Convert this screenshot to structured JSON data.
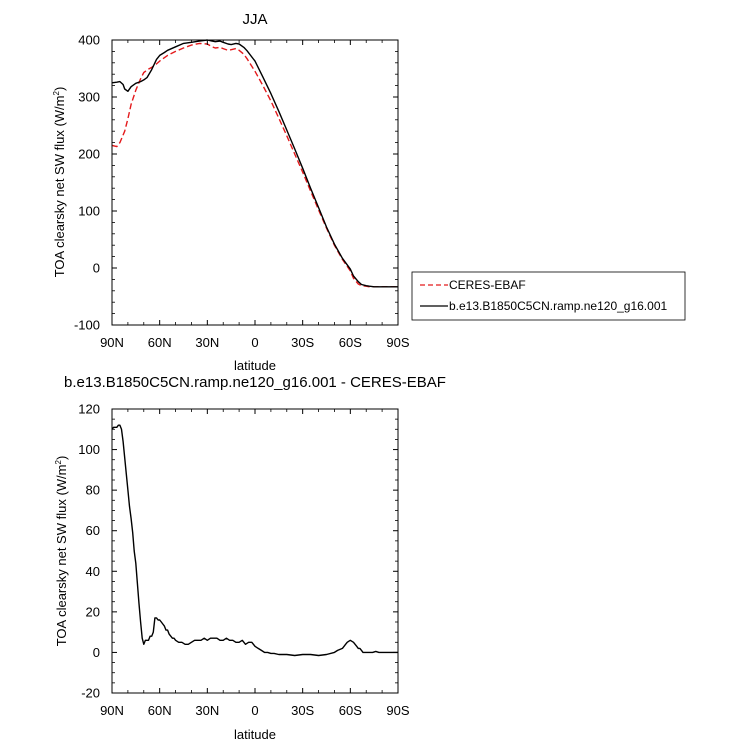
{
  "chart_data": [
    {
      "type": "line",
      "title": "JJA",
      "xlabel": "latitude",
      "ylabel": "TOA clearsky net SW flux (W/m",
      "ylabel_sup": "2",
      "ylabel_close": ")",
      "xlim": [
        90,
        -90
      ],
      "ylim": [
        -100,
        400
      ],
      "x_ticks": [
        90,
        60,
        30,
        0,
        -30,
        -60,
        -90
      ],
      "x_tick_labels": [
        "90N",
        "60N",
        "30N",
        "0",
        "30S",
        "60S",
        "90S"
      ],
      "y_ticks": [
        -100,
        0,
        100,
        200,
        300,
        400
      ],
      "y_tick_labels": [
        "-100",
        "0",
        "100",
        "200",
        "300",
        "400"
      ],
      "legend": "right",
      "series": [
        {
          "name": "CERES-EBAF",
          "color": "#e41a1c",
          "dash": true,
          "x": [
            90,
            87,
            85,
            82,
            80,
            78,
            75,
            72,
            70,
            67,
            65,
            62,
            60,
            57,
            55,
            50,
            45,
            40,
            35,
            30,
            27,
            25,
            22,
            20,
            17,
            15,
            12,
            10,
            7,
            5,
            0,
            -5,
            -10,
            -15,
            -20,
            -25,
            -30,
            -35,
            -40,
            -45,
            -50,
            -55,
            -60,
            -62,
            -65,
            -67,
            -70,
            -72,
            -75,
            -80,
            -85,
            -90
          ],
          "y": [
            215,
            213,
            220,
            240,
            262,
            287,
            312,
            332,
            343,
            349,
            352,
            358,
            363,
            369,
            373,
            380,
            386,
            391,
            394,
            393,
            388,
            386,
            387,
            385,
            382,
            383,
            385,
            382,
            375,
            367,
            345,
            320,
            293,
            263,
            232,
            200,
            168,
            135,
            102,
            70,
            40,
            15,
            -5,
            -18,
            -28,
            -31,
            -32,
            -33,
            -33,
            -33,
            -33,
            -33
          ]
        },
        {
          "name": "b.e13.B1850C5CN.ramp.ne120_g16.001",
          "color": "#000000",
          "dash": false,
          "x": [
            90,
            87,
            85,
            83,
            82,
            80,
            78,
            75,
            72,
            70,
            68,
            65,
            62,
            60,
            57,
            55,
            50,
            45,
            40,
            35,
            30,
            27,
            25,
            22,
            20,
            17,
            15,
            12,
            10,
            7,
            5,
            0,
            -5,
            -10,
            -15,
            -20,
            -25,
            -30,
            -35,
            -40,
            -45,
            -50,
            -55,
            -60,
            -62,
            -65,
            -67,
            -70,
            -72,
            -75,
            -80,
            -85,
            -90
          ],
          "y": [
            325,
            326,
            327,
            322,
            314,
            310,
            318,
            324,
            327,
            330,
            334,
            348,
            366,
            373,
            378,
            382,
            388,
            394,
            396,
            398,
            400,
            398,
            397,
            398,
            396,
            393,
            392,
            394,
            393,
            387,
            381,
            363,
            335,
            306,
            275,
            242,
            209,
            175,
            140,
            106,
            72,
            42,
            17,
            -2,
            -14,
            -24,
            -29,
            -31,
            -32,
            -33,
            -33,
            -33,
            -33
          ]
        }
      ]
    },
    {
      "type": "line",
      "title": "b.e13.B1850C5CN.ramp.ne120_g16.001 - CERES-EBAF",
      "xlabel": "latitude",
      "ylabel": "TOA clearsky net SW flux (W/m",
      "ylabel_sup": "2",
      "ylabel_close": ")",
      "xlim": [
        90,
        -90
      ],
      "ylim": [
        -20,
        120
      ],
      "x_ticks": [
        90,
        60,
        30,
        0,
        -30,
        -60,
        -90
      ],
      "x_tick_labels": [
        "90N",
        "60N",
        "30N",
        "0",
        "30S",
        "60S",
        "90S"
      ],
      "y_ticks": [
        -20,
        0,
        20,
        40,
        60,
        80,
        100,
        120
      ],
      "y_tick_labels": [
        "-20",
        "0",
        "20",
        "40",
        "60",
        "80",
        "100",
        "120"
      ],
      "series": [
        {
          "color": "#000000",
          "x": [
            90,
            89,
            87,
            86,
            85,
            84,
            83,
            82,
            81,
            80,
            79,
            78,
            77,
            76,
            75,
            74,
            73,
            72,
            71,
            70,
            69,
            68,
            67,
            66,
            65,
            64,
            63,
            62,
            61,
            60,
            59,
            58,
            57,
            56,
            55,
            54,
            53,
            52,
            51,
            50,
            48,
            46,
            44,
            42,
            40,
            38,
            36,
            34,
            32,
            30,
            28,
            26,
            24,
            22,
            20,
            18,
            16,
            14,
            12,
            10,
            8,
            6,
            4,
            2,
            0,
            -2,
            -4,
            -6,
            -8,
            -10,
            -12,
            -15,
            -20,
            -25,
            -30,
            -35,
            -40,
            -45,
            -50,
            -52,
            -55,
            -57,
            -58,
            -59,
            -60,
            -61,
            -62,
            -63,
            -64,
            -65,
            -66,
            -67,
            -68,
            -69,
            -70,
            -72,
            -74,
            -76,
            -78,
            -80,
            -82,
            -84,
            -86,
            -88,
            -90
          ],
          "y": [
            110,
            111,
            111,
            112,
            112,
            110,
            104,
            96,
            88,
            80,
            72,
            66,
            59,
            50,
            44,
            34,
            24,
            15,
            7,
            4,
            6,
            6,
            6,
            8,
            8,
            10,
            17,
            17,
            16,
            16,
            15,
            14,
            13,
            11,
            11,
            9,
            8,
            7,
            7,
            6,
            5,
            5,
            4,
            4,
            5,
            6,
            6,
            6,
            7,
            6,
            7,
            7,
            7,
            6,
            6,
            7,
            6,
            6,
            5,
            5,
            6,
            4,
            5,
            5,
            3,
            2,
            1,
            0,
            0,
            -0.5,
            -0.5,
            -1,
            -1,
            -1.5,
            -1,
            -1,
            -1.5,
            -1,
            0,
            1,
            2,
            4,
            5,
            5.5,
            6,
            5.5,
            5,
            4,
            3,
            2,
            2,
            1,
            0,
            0,
            0,
            0,
            0,
            0.5,
            0,
            0,
            0,
            0,
            0,
            0,
            0
          ]
        }
      ]
    }
  ]
}
